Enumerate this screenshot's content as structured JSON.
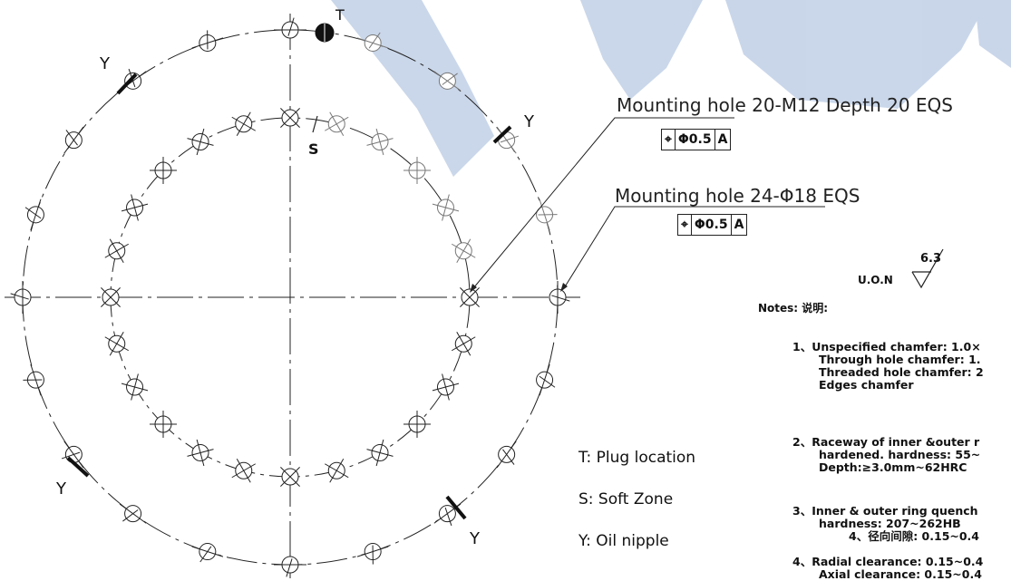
{
  "drawing": {
    "outer_hole_count": 20,
    "inner_hole_count": 24,
    "markers": {
      "plug": "T",
      "soft_zone": "S",
      "oil_nipple": "Y"
    }
  },
  "callouts": {
    "mounting_20": {
      "text": "Mounting hole 20-M12 Depth 20 EQS",
      "fcf": {
        "symbol": "⌖",
        "value": "Φ0.5",
        "datum": "A"
      }
    },
    "mounting_24": {
      "text": "Mounting hole 24-Φ18 EQS",
      "fcf": {
        "symbol": "⌖",
        "value": "Φ0.5",
        "datum": "A"
      }
    }
  },
  "surface": {
    "label": "U.O.N",
    "value": "6.3"
  },
  "legend": {
    "plug": "T: Plug location",
    "soft": "S: Soft Zone",
    "oil": "Y: Oil nipple"
  },
  "notes": {
    "title": "Notes: 说明:",
    "n1": [
      "1、Unspecified chamfer: 1.0×",
      "Through hole chamfer: 1.",
      "Threaded hole chamfer: 2",
      "Edges chamfer"
    ],
    "n2": [
      "2、Raceway of inner &outer r",
      "hardened. hardness: 55~",
      "Depth:≥3.0mm~62HRC"
    ],
    "n3": [
      "3、Inner & outer ring quench",
      "hardness: 207~262HB",
      "4、径向间隙: 0.15~0.4"
    ],
    "n4": [
      "4、Radial clearance: 0.15~0.4",
      "Axial clearance: 0.15~0.4"
    ]
  }
}
